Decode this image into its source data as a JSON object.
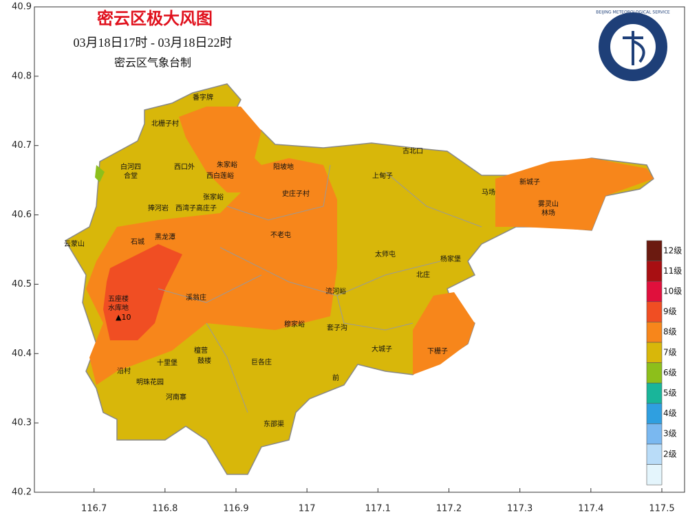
{
  "header": {
    "title": "密云区极大风图",
    "period": "03月18日17时 - 03月18日22时",
    "issuer": "密云区气象台制",
    "logo_text": "BEIJING METEOROLOGICAL SERVICE"
  },
  "axes": {
    "xlim": [
      116.616,
      117.532
    ],
    "ylim": [
      40.2,
      40.9
    ],
    "xticks": [
      116.7,
      116.8,
      116.9,
      117,
      117.1,
      117.2,
      117.3,
      117.4,
      117.5
    ],
    "yticks": [
      40.2,
      40.3,
      40.4,
      40.5,
      40.6,
      40.7,
      40.8,
      40.9
    ]
  },
  "legend": [
    {
      "label": "12级",
      "color": "#6b1a10"
    },
    {
      "label": "11级",
      "color": "#a80f12"
    },
    {
      "label": "10级",
      "color": "#e0103c"
    },
    {
      "label": "9级",
      "color": "#f04e23"
    },
    {
      "label": "8级",
      "color": "#f7861b"
    },
    {
      "label": "7级",
      "color": "#d8b70a"
    },
    {
      "label": "6级",
      "color": "#8dbf1b"
    },
    {
      "label": "5级",
      "color": "#19b59a"
    },
    {
      "label": "4级",
      "color": "#2f9fe0"
    },
    {
      "label": "3级",
      "color": "#7ab8f0"
    },
    {
      "label": "2级",
      "color": "#b9dcf8"
    },
    {
      "color": "#e4f5fc"
    }
  ],
  "max_wind": "▲10",
  "places": [
    "番字牌",
    "北栅子村",
    "白河四",
    "合堂",
    "西口外",
    "朱家峪",
    "西白莲峪",
    "阳坡地",
    "上甸子",
    "古北口",
    "马场",
    "新城子",
    "雾灵山",
    "林场",
    "史庄子村",
    "张家峪",
    "捧河岩",
    "西湾子",
    "高庄子",
    "石城",
    "黑龙潭",
    "不老屯",
    "太师屯",
    "杨家堡",
    "北庄",
    "云蒙山",
    "流河峪",
    "溪翁庄",
    "五座楼",
    "水库地",
    "穆家峪",
    "套子沟",
    "大城子",
    "下栅子",
    "檀营",
    "鼓楼",
    "巨各庄",
    "十里堡",
    "沿村",
    "明珠花园",
    "前",
    "河南寨",
    "东邵渠"
  ]
}
